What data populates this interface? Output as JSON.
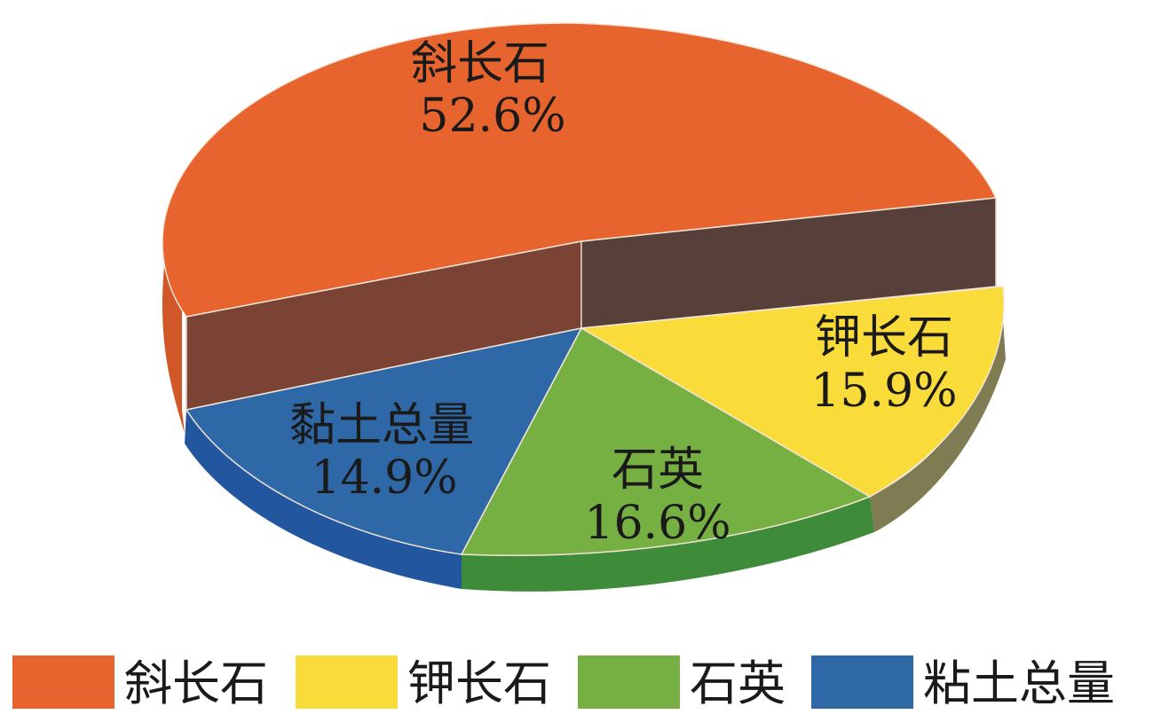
{
  "chart_data": {
    "type": "pie",
    "title": "",
    "slices": [
      {
        "label": "斜长石",
        "percent_label": "52.6%",
        "value": 52.6,
        "color": "#E8642F",
        "side_color": "#CF5728"
      },
      {
        "label": "钾长石",
        "percent_label": "15.9%",
        "value": 15.9,
        "color": "#F9DB3A",
        "side_color": "#7F7B53"
      },
      {
        "label": "石英",
        "percent_label": "16.6%",
        "value": 16.6,
        "color": "#76B043",
        "side_color": "#3E8C3A"
      },
      {
        "label": "黏土总量",
        "percent_label": "14.9%",
        "value": 14.9,
        "color": "#2F68A6",
        "side_color": "#2257A0"
      }
    ],
    "legend": {
      "position": "bottom",
      "entries": [
        "斜长石",
        "钾长石",
        "石英",
        "粘土总量"
      ]
    },
    "cut_face_colors": {
      "left": "#7A4334",
      "right": "#564039"
    }
  }
}
